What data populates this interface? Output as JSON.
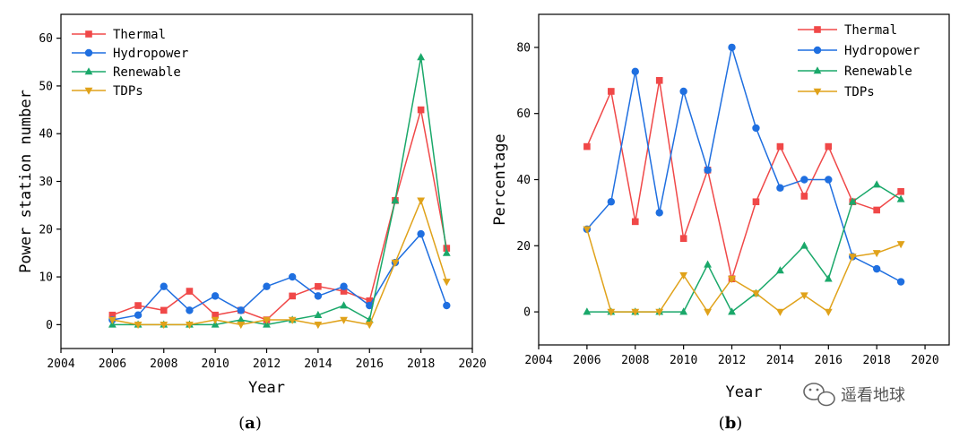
{
  "colors": {
    "Thermal": "#f04848",
    "Hydropower": "#1f6fe0",
    "Renewable": "#1aa86a",
    "TDPs": "#e0a21a"
  },
  "markers": {
    "Thermal": "square",
    "Hydropower": "circle",
    "Renewable": "triangle-up",
    "TDPs": "triangle-down"
  },
  "watermark": "遥看地球",
  "chart_data": [
    {
      "type": "line",
      "panel_label": "a",
      "xlabel": "Year",
      "ylabel": "Power station number",
      "xlim": [
        2004,
        2020
      ],
      "ylim": [
        -5,
        65
      ],
      "xticks": [
        2004,
        2006,
        2008,
        2010,
        2012,
        2014,
        2016,
        2018,
        2020
      ],
      "yticks": [
        0,
        10,
        20,
        30,
        40,
        50,
        60
      ],
      "legend_position": "top-left",
      "x": [
        2006,
        2007,
        2008,
        2009,
        2010,
        2011,
        2012,
        2013,
        2014,
        2015,
        2016,
        2017,
        2018,
        2019
      ],
      "series": [
        {
          "name": "Thermal",
          "values": [
            2,
            4,
            3,
            7,
            2,
            3,
            1,
            6,
            8,
            7,
            5,
            26,
            45,
            16
          ]
        },
        {
          "name": "Hydropower",
          "values": [
            1,
            2,
            8,
            3,
            6,
            3,
            8,
            10,
            6,
            8,
            4,
            13,
            19,
            4
          ]
        },
        {
          "name": "Renewable",
          "values": [
            0,
            0,
            0,
            0,
            0,
            1,
            0,
            1,
            2,
            4,
            1,
            26,
            56,
            15
          ]
        },
        {
          "name": "TDPs",
          "values": [
            1,
            0,
            0,
            0,
            1,
            0,
            1,
            1,
            0,
            1,
            0,
            13,
            26,
            9
          ]
        }
      ]
    },
    {
      "type": "line",
      "panel_label": "b",
      "xlabel": "Year",
      "ylabel": "Percentage",
      "xlim": [
        2004,
        2021
      ],
      "ylim": [
        -10,
        90
      ],
      "xticks": [
        2004,
        2006,
        2008,
        2010,
        2012,
        2014,
        2016,
        2018,
        2020
      ],
      "yticks": [
        0,
        20,
        40,
        60,
        80
      ],
      "legend_position": "top-right",
      "x": [
        2006,
        2007,
        2008,
        2009,
        2010,
        2011,
        2012,
        2013,
        2014,
        2015,
        2016,
        2017,
        2018,
        2019
      ],
      "series": [
        {
          "name": "Thermal",
          "values": [
            50,
            66.7,
            27.3,
            70,
            22.2,
            42.9,
            10,
            33.3,
            50,
            35,
            50,
            33.3,
            30.8,
            36.4
          ]
        },
        {
          "name": "Hydropower",
          "values": [
            25,
            33.3,
            72.7,
            30,
            66.7,
            42.9,
            80,
            55.6,
            37.5,
            40,
            40,
            16.7,
            13,
            9.1
          ]
        },
        {
          "name": "Renewable",
          "values": [
            0,
            0,
            0,
            0,
            0,
            14.3,
            0,
            5.6,
            12.5,
            20,
            10,
            33.3,
            38.5,
            34.1
          ]
        },
        {
          "name": "TDPs",
          "values": [
            25,
            0,
            0,
            0,
            11.1,
            0,
            10,
            5.6,
            0,
            5,
            0,
            16.7,
            17.8,
            20.5
          ]
        }
      ]
    }
  ]
}
